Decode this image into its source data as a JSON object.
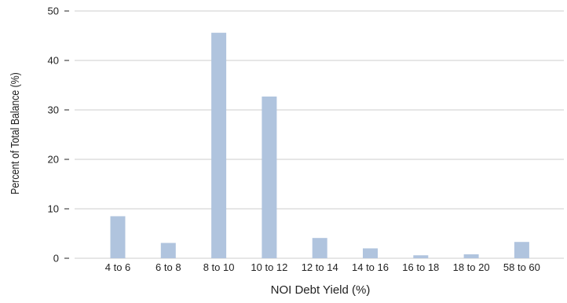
{
  "chart_data": {
    "type": "bar",
    "title": "",
    "xlabel": "NOI Debt Yield (%)",
    "ylabel": "Percent of Total Balance (%)",
    "categories": [
      "4 to 6",
      "6 to 8",
      "8 to 10",
      "10 to 12",
      "12 to 14",
      "14 to 16",
      "16 to 18",
      "18 to 20",
      "58 to 60"
    ],
    "values": [
      8.5,
      3.1,
      45.6,
      32.7,
      4.1,
      2.0,
      0.6,
      0.8,
      3.3
    ],
    "ylim": [
      0,
      50
    ],
    "yticks": [
      0,
      10,
      20,
      30,
      40,
      50
    ],
    "grid": true,
    "legend": "none",
    "colors": {
      "bar": "#b0c4de",
      "grid": "#cccccc",
      "text": "#222222"
    }
  }
}
